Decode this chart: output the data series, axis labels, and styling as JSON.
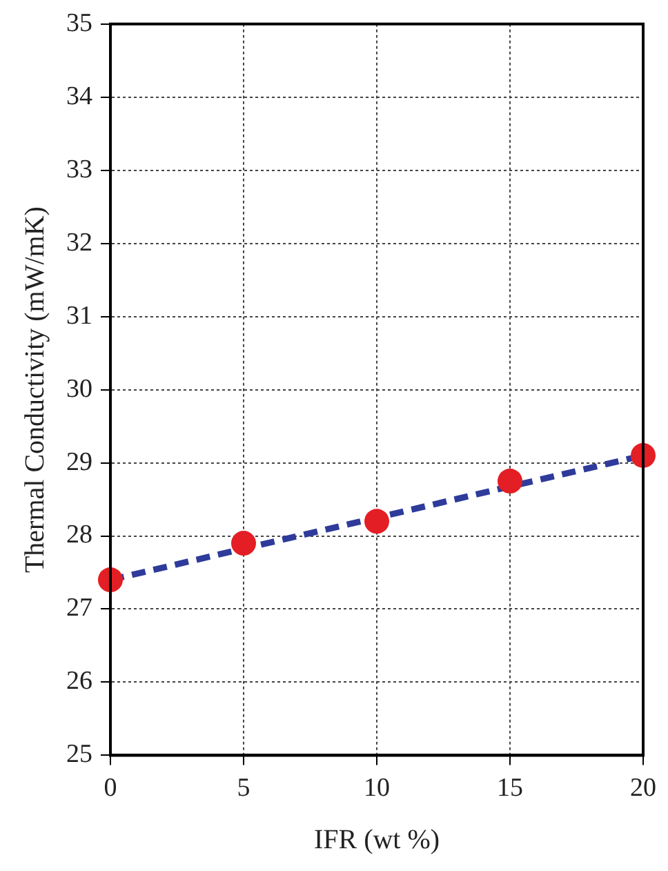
{
  "chart_data": {
    "type": "scatter",
    "xlabel": "IFR (wt %)",
    "ylabel": "Thermal Conductivity (mW/mK)",
    "xlim": [
      0,
      20
    ],
    "xticks": [
      0,
      5,
      10,
      15,
      20
    ],
    "ylim": [
      25,
      35
    ],
    "yticks": [
      25,
      26,
      27,
      28,
      29,
      30,
      31,
      32,
      33,
      34,
      35
    ],
    "grid": true,
    "legend": false,
    "series": [
      {
        "color": "#e31e24",
        "marker": "circle",
        "x": [
          0,
          5,
          10,
          15,
          20
        ],
        "values": [
          27.4,
          27.9,
          28.2,
          28.75,
          29.1
        ]
      },
      {
        "type": "line",
        "color": "#2e3b9a",
        "marker": "none",
        "line_style": "dashed",
        "x": [
          0,
          20
        ],
        "values": [
          27.4,
          29.1
        ]
      }
    ]
  }
}
